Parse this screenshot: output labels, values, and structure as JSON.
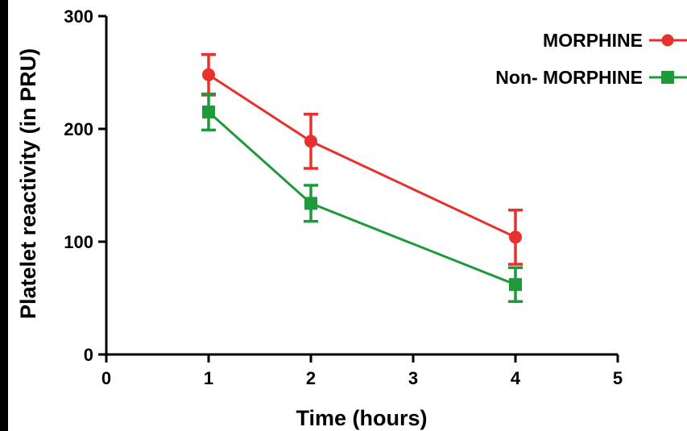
{
  "chart_data": {
    "type": "line",
    "xlabel": "Time (hours)",
    "ylabel": "Platelet reactivity (in PRU)",
    "xlim": [
      0,
      5
    ],
    "ylim": [
      0,
      300
    ],
    "xticks": [
      0,
      1,
      2,
      3,
      4,
      5
    ],
    "yticks": [
      0,
      100,
      200,
      300
    ],
    "x": [
      1,
      2,
      4
    ],
    "grid": false,
    "legend_position": "top-right",
    "series": [
      {
        "name": "MORPHINE",
        "color": "#e8302c",
        "marker": "circle",
        "values": [
          248,
          189,
          104
        ],
        "error": [
          18,
          24,
          24
        ]
      },
      {
        "name": "Non- MORPHINE",
        "color": "#1e9a3a",
        "marker": "square",
        "values": [
          215,
          134,
          62
        ],
        "error": [
          16,
          16,
          15
        ]
      }
    ]
  }
}
